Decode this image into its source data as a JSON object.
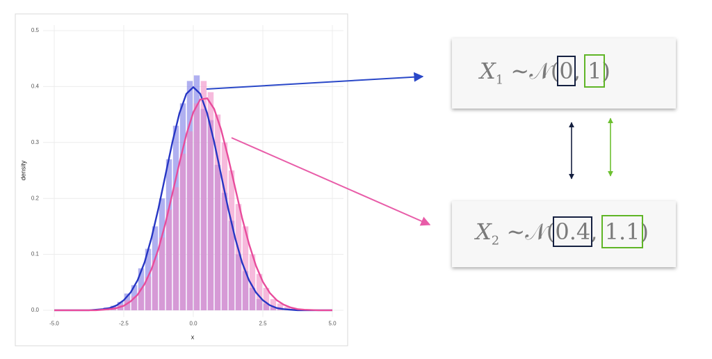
{
  "chart_data": {
    "type": "histogram",
    "xlabel": "x",
    "ylabel": "density",
    "xlim": [
      -5.4,
      5.4
    ],
    "ylim": [
      -0.012,
      0.51
    ],
    "xticks": [
      {
        "value": -5,
        "label": "-5.0"
      },
      -2.5,
      {
        "value": 0,
        "label": "0.0"
      },
      2.5,
      {
        "value": 5,
        "label": "5.0"
      }
    ],
    "yticks": [
      {
        "value": 0,
        "label": "0.0"
      },
      0.1,
      0.2,
      0.3,
      0.4,
      0.5
    ],
    "grid": true,
    "histograms": [
      {
        "color": "#7b7be6",
        "bins": [
          -3.5,
          -3.25,
          -3,
          -2.75,
          -2.5,
          -2.25,
          -2,
          -1.75,
          -1.5,
          -1.25,
          -1,
          -0.75,
          -0.5,
          -0.25,
          0,
          0.25,
          0.5,
          0.75,
          1,
          1.25,
          1.5,
          1.75,
          2,
          2.25,
          2.5,
          2.75,
          3,
          3.25,
          3.5,
          3.75
        ],
        "values": [
          0.001,
          0.005,
          0.008,
          0.015,
          0.03,
          0.045,
          0.075,
          0.11,
          0.15,
          0.2,
          0.27,
          0.33,
          0.37,
          0.41,
          0.42,
          0.36,
          0.34,
          0.26,
          0.21,
          0.16,
          0.1,
          0.07,
          0.04,
          0.02,
          0.012,
          0.006,
          0.003,
          0,
          0
        ]
      },
      {
        "color": "#f08cc4",
        "bins": [
          -3.5,
          -3.25,
          -3,
          -2.75,
          -2.5,
          -2.25,
          -2,
          -1.75,
          -1.5,
          -1.25,
          -1,
          -0.75,
          -0.5,
          -0.25,
          0,
          0.25,
          0.5,
          0.75,
          1,
          1.25,
          1.5,
          1.75,
          2,
          2.25,
          2.5,
          2.75,
          3,
          3.25,
          3.5,
          3.75
        ],
        "values": [
          0,
          0.002,
          0.004,
          0.01,
          0.018,
          0.025,
          0.04,
          0.06,
          0.09,
          0.13,
          0.18,
          0.22,
          0.28,
          0.32,
          0.37,
          0.41,
          0.39,
          0.35,
          0.3,
          0.25,
          0.19,
          0.15,
          0.1,
          0.065,
          0.04,
          0.02,
          0.012,
          0.006,
          0.003
        ]
      }
    ],
    "curves": [
      {
        "color": "#2636c4",
        "x": [
          -5,
          -4.5,
          -4,
          -3.75,
          -3.5,
          -3.25,
          -3,
          -2.75,
          -2.5,
          -2.25,
          -2,
          -1.75,
          -1.5,
          -1.25,
          -1,
          -0.75,
          -0.5,
          -0.25,
          0,
          0.25,
          0.5,
          0.75,
          1,
          1.25,
          1.5,
          1.75,
          2,
          2.25,
          2.5,
          2.75,
          3,
          3.25,
          3.5,
          3.75,
          4,
          4.5,
          5
        ],
        "values": [
          0,
          0,
          0,
          0,
          0.001,
          0.002,
          0.004,
          0.009,
          0.018,
          0.032,
          0.054,
          0.086,
          0.13,
          0.183,
          0.242,
          0.301,
          0.352,
          0.387,
          0.399,
          0.387,
          0.352,
          0.301,
          0.242,
          0.183,
          0.13,
          0.086,
          0.054,
          0.032,
          0.018,
          0.009,
          0.004,
          0.002,
          0.001,
          0,
          0,
          0,
          0
        ]
      },
      {
        "color": "#e84c9c",
        "x": [
          -5,
          -4.5,
          -4,
          -3.75,
          -3.5,
          -3.25,
          -3,
          -2.75,
          -2.5,
          -2.25,
          -2,
          -1.75,
          -1.5,
          -1.25,
          -1,
          -0.75,
          -0.5,
          -0.25,
          0,
          0.25,
          0.5,
          0.75,
          1,
          1.25,
          1.5,
          1.75,
          2,
          2.25,
          2.5,
          2.75,
          3,
          3.25,
          3.5,
          3.75,
          4,
          4.5,
          5
        ],
        "values": [
          0,
          0,
          0,
          0,
          0,
          0.001,
          0.002,
          0.004,
          0.008,
          0.016,
          0.028,
          0.047,
          0.074,
          0.11,
          0.156,
          0.209,
          0.263,
          0.314,
          0.354,
          0.377,
          0.379,
          0.36,
          0.323,
          0.274,
          0.22,
          0.166,
          0.119,
          0.08,
          0.051,
          0.031,
          0.018,
          0.01,
          0.005,
          0.002,
          0.001,
          0,
          0
        ]
      }
    ]
  },
  "formulas": [
    {
      "variable": "X",
      "index": "1",
      "relation": "∼",
      "family": "𝒩",
      "open": "(",
      "mean": "0",
      "comma": ",",
      "sd": "1",
      "close": ")"
    },
    {
      "variable": "X",
      "index": "2",
      "relation": "∼",
      "family": "𝒩",
      "open": "(",
      "mean": "0.4",
      "comma": ",",
      "sd": "1.1",
      "close": ")"
    }
  ]
}
